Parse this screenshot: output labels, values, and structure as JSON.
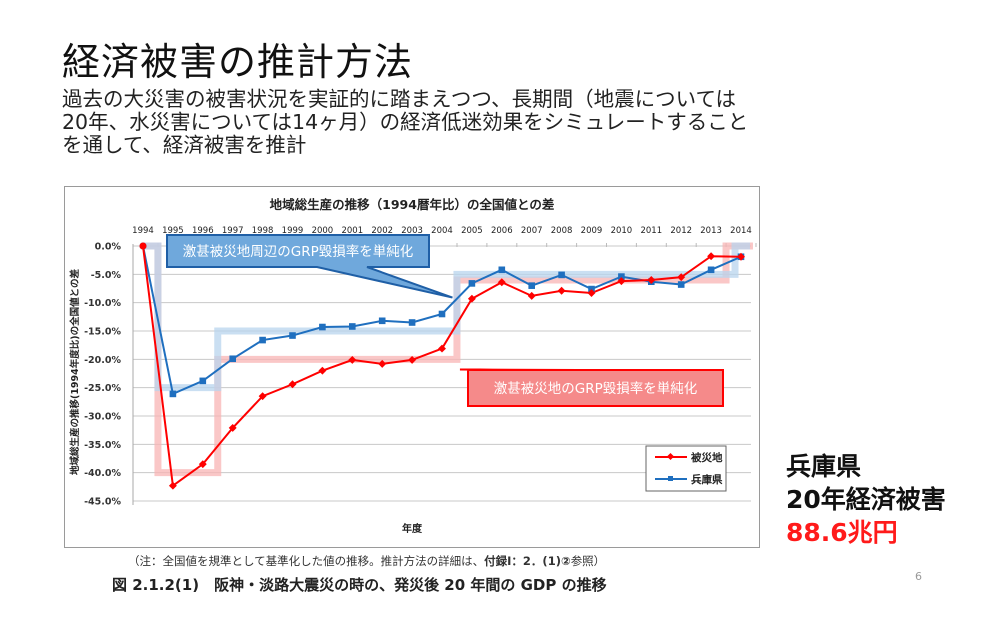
{
  "slide": {
    "title": "経済被害の推計方法",
    "subtitle_lines": [
      "過去の大災害の被害状況を実証的に踏まえつつ、長期間（地震については",
      "20年、水災害については14ヶ月）の経済低迷効果をシミュレートすること",
      "を通して、経済被害を推計"
    ],
    "note_prefix": "（注：全国値を規準として基準化した値の推移。推計方法の詳細は、",
    "note_bold": "付録Ⅰ：2．(1)②",
    "note_suffix": "参照）",
    "figure_caption": "図 2.1.2(1)　阪神・淡路大震災の時の、発災後 20 年間の GDP の推移",
    "side_label_line1": "兵庫県",
    "side_label_line2": "20年経済被害",
    "side_value": "88.6兆円",
    "page_number": "6"
  },
  "colors": {
    "red_series": "#ff0000",
    "blue_series": "#1f6fbf",
    "red_band": "#f8b4b4",
    "blue_band": "#b8d4ee",
    "blue_callout_fill": "#6fa8dc",
    "blue_callout_border": "#1f5fa6",
    "red_callout_fill": "#f58a8a",
    "red_callout_border": "#ff0000",
    "side_value": "#ff1a1a"
  },
  "chart_data": {
    "type": "line",
    "title": "地域総生産の推移（1994暦年比）の全国値との差",
    "xlabel": "年度",
    "ylabel": "地域総生産の推移(1994年度比)の全国値との差",
    "x": [
      1994,
      1995,
      1996,
      1997,
      1998,
      1999,
      2000,
      2001,
      2002,
      2003,
      2004,
      2005,
      2006,
      2007,
      2008,
      2009,
      2010,
      2011,
      2012,
      2013,
      2014
    ],
    "x_tick_labels": [
      "1994",
      "1995",
      "1996",
      "1997",
      "1998",
      "1999",
      "2000",
      "2001",
      "2002",
      "2003",
      "2004",
      "2005",
      "2006",
      "2007",
      "2008",
      "2009",
      "2010",
      "2011",
      "2012",
      "2013",
      "2014"
    ],
    "x_axis_position": "top",
    "ylim": [
      -45,
      0
    ],
    "y_ticks": [
      0,
      -5,
      -10,
      -15,
      -20,
      -25,
      -30,
      -35,
      -40,
      -45
    ],
    "y_tick_labels": [
      "0.0%",
      "-5.0%",
      "-10.0%",
      "-15.0%",
      "-20.0%",
      "-25.0%",
      "-30.0%",
      "-35.0%",
      "-40.0%",
      "-45.0%"
    ],
    "grid": true,
    "legend_position": "bottom-right",
    "series": [
      {
        "name": "被災地",
        "color": "#ff0000",
        "marker": "diamond",
        "values": [
          0.0,
          -42.3,
          -38.5,
          -32.1,
          -26.5,
          -24.4,
          -22.0,
          -20.1,
          -20.8,
          -20.1,
          -18.1,
          -9.3,
          -6.4,
          -8.8,
          -7.9,
          -8.3,
          -6.2,
          -6.0,
          -5.5,
          -1.8,
          -1.9
        ]
      },
      {
        "name": "兵庫県",
        "color": "#1f6fbf",
        "marker": "square",
        "values": [
          0.0,
          -26.1,
          -23.8,
          -19.9,
          -16.6,
          -15.8,
          -14.3,
          -14.2,
          -13.2,
          -13.5,
          -12.0,
          -6.6,
          -4.2,
          -7.0,
          -5.1,
          -7.6,
          -5.4,
          -6.3,
          -6.8,
          -4.2,
          -1.9
        ]
      }
    ],
    "step_overlays": [
      {
        "name": "被災地 simplified GRP loss",
        "color": "#f8b4b4",
        "segments": [
          {
            "from": 1994,
            "to": 1994.5,
            "value": 0
          },
          {
            "from": 1994.5,
            "to": 1996.5,
            "value": -40
          },
          {
            "from": 1996.5,
            "to": 2004.5,
            "value": -20
          },
          {
            "from": 2004.5,
            "to": 2013.5,
            "value": -6
          },
          {
            "from": 2013.5,
            "to": 2014.4,
            "value": 0
          }
        ]
      },
      {
        "name": "兵庫県 simplified GRP loss",
        "color": "#b8d4ee",
        "segments": [
          {
            "from": 1994,
            "to": 1994.5,
            "value": 0
          },
          {
            "from": 1994.5,
            "to": 1996.5,
            "value": -25
          },
          {
            "from": 1996.5,
            "to": 2004.5,
            "value": -15
          },
          {
            "from": 2004.5,
            "to": 2013.8,
            "value": -5
          },
          {
            "from": 2013.8,
            "to": 2014.3,
            "value": 0
          }
        ]
      }
    ],
    "annotations": [
      {
        "text": "激甚被災地周辺のGRP毀損率を単純化",
        "style": "blue-callout",
        "points_to": {
          "x": 2004.5,
          "y": -10
        }
      },
      {
        "text": "激甚被災地のGRP毀損率を単純化",
        "style": "red-callout",
        "points_to": {
          "x": 2004.5,
          "y": -22
        }
      }
    ]
  }
}
